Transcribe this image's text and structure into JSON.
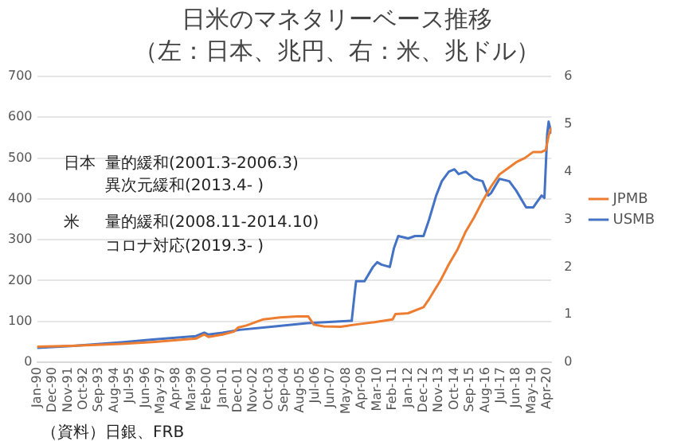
{
  "chart_data": {
    "type": "line",
    "title": "日米のマネタリーベース推移",
    "subtitle": "（左：日本、兆円、右：米、兆ドル）",
    "annotations": [
      "日本",
      "量的緩和(2001.3-2006.3)",
      "異次元緩和(2013.4- )",
      "米",
      "量的緩和(2008.11-2014.10)",
      "コロナ対応(2019.3- )",
      "（資料）日銀、FRB"
    ],
    "xlim": [
      "1990-01",
      "2020-07"
    ],
    "xticks": [
      {
        "value": "1990-01",
        "label": "Jan-90"
      },
      {
        "value": "1990-12",
        "label": "Dec-90"
      },
      {
        "value": "1991-11",
        "label": "Nov-91"
      },
      {
        "value": "1992-10",
        "label": "Oct-92"
      },
      {
        "value": "1993-09",
        "label": "Sep-93"
      },
      {
        "value": "1994-08",
        "label": "Aug-94"
      },
      {
        "value": "1995-07",
        "label": "Jul-95"
      },
      {
        "value": "1996-06",
        "label": "Jun-96"
      },
      {
        "value": "1997-05",
        "label": "May-97"
      },
      {
        "value": "1998-04",
        "label": "Apr-98"
      },
      {
        "value": "1999-03",
        "label": "Mar-99"
      },
      {
        "value": "2000-02",
        "label": "Feb-00"
      },
      {
        "value": "2001-01",
        "label": "Jan-01"
      },
      {
        "value": "2001-12",
        "label": "Dec-01"
      },
      {
        "value": "2002-11",
        "label": "Nov-02"
      },
      {
        "value": "2003-10",
        "label": "Oct-03"
      },
      {
        "value": "2004-09",
        "label": "Sep-04"
      },
      {
        "value": "2005-08",
        "label": "Aug-05"
      },
      {
        "value": "2006-07",
        "label": "Jul-06"
      },
      {
        "value": "2007-06",
        "label": "Jun-07"
      },
      {
        "value": "2008-05",
        "label": "May-08"
      },
      {
        "value": "2009-04",
        "label": "Apr-09"
      },
      {
        "value": "2010-03",
        "label": "Mar-10"
      },
      {
        "value": "2011-02",
        "label": "Feb-11"
      },
      {
        "value": "2012-01",
        "label": "Jan-12"
      },
      {
        "value": "2012-12",
        "label": "Dec-12"
      },
      {
        "value": "2013-11",
        "label": "Nov-13"
      },
      {
        "value": "2014-10",
        "label": "Oct-14"
      },
      {
        "value": "2015-09",
        "label": "Sep-15"
      },
      {
        "value": "2016-08",
        "label": "Aug-16"
      },
      {
        "value": "2017-07",
        "label": "Jul-17"
      },
      {
        "value": "2018-06",
        "label": "Jun-18"
      },
      {
        "value": "2019-05",
        "label": "May-19"
      },
      {
        "value": "2020-04",
        "label": "Apr-20"
      }
    ],
    "ylim": [
      0,
      700
    ],
    "yticks": [
      0,
      100,
      200,
      300,
      400,
      500,
      600,
      700
    ],
    "y2lim": [
      0,
      6
    ],
    "y2ticks": [
      0,
      1,
      2,
      3,
      4,
      5,
      6
    ],
    "grid": "y",
    "legend": "right",
    "marker": "none",
    "line_style": "solid",
    "series": [
      {
        "name": "JPMB",
        "color": "#ed7d31",
        "x": [
          "1990-01",
          "1992-01",
          "1995-01",
          "1997-01",
          "1999-06",
          "1999-12",
          "2000-03",
          "2001-01",
          "2001-09",
          "2001-12",
          "2002-06",
          "2003-06",
          "2004-06",
          "2005-06",
          "2006-02",
          "2006-06",
          "2007-01",
          "2008-01",
          "2009-01",
          "2010-01",
          "2011-02",
          "2011-04",
          "2012-01",
          "2012-12",
          "2013-04",
          "2013-12",
          "2014-06",
          "2014-12",
          "2015-06",
          "2015-12",
          "2016-06",
          "2016-12",
          "2017-06",
          "2017-12",
          "2018-06",
          "2018-12",
          "2019-06",
          "2019-12",
          "2020-03",
          "2020-05",
          "2020-07"
        ],
        "values": [
          38,
          40,
          45,
          50,
          58,
          68,
          62,
          68,
          75,
          85,
          90,
          105,
          110,
          112,
          112,
          92,
          88,
          87,
          93,
          98,
          105,
          118,
          120,
          135,
          155,
          200,
          240,
          275,
          320,
          355,
          395,
          430,
          460,
          475,
          490,
          500,
          515,
          515,
          520,
          555,
          575
        ]
      },
      {
        "name": "USMB",
        "color": "#4472c4",
        "axis": "y2",
        "x": [
          "1990-01",
          "1992-01",
          "1995-01",
          "1997-01",
          "1999-06",
          "1999-12",
          "2000-03",
          "2001-01",
          "2002-01",
          "2004-01",
          "2006-01",
          "2008-08",
          "2008-09",
          "2008-11",
          "2008-12",
          "2009-06",
          "2009-12",
          "2010-03",
          "2010-06",
          "2010-12",
          "2011-03",
          "2011-06",
          "2012-01",
          "2012-06",
          "2012-12",
          "2013-04",
          "2013-09",
          "2014-01",
          "2014-06",
          "2014-10",
          "2015-01",
          "2015-06",
          "2015-12",
          "2016-06",
          "2016-10",
          "2016-12",
          "2017-06",
          "2018-01",
          "2018-06",
          "2019-01",
          "2019-06",
          "2019-12",
          "2020-02",
          "2020-04",
          "2020-05",
          "2020-07"
        ],
        "values": [
          0.3,
          0.34,
          0.42,
          0.48,
          0.55,
          0.62,
          0.58,
          0.62,
          0.68,
          0.75,
          0.82,
          0.87,
          0.9,
          1.45,
          1.7,
          1.7,
          2.0,
          2.1,
          2.05,
          2.0,
          2.4,
          2.65,
          2.6,
          2.65,
          2.65,
          3.0,
          3.5,
          3.8,
          4.0,
          4.05,
          3.95,
          4.0,
          3.85,
          3.8,
          3.5,
          3.55,
          3.85,
          3.8,
          3.6,
          3.25,
          3.25,
          3.5,
          3.45,
          4.8,
          5.05,
          4.8
        ]
      }
    ]
  }
}
